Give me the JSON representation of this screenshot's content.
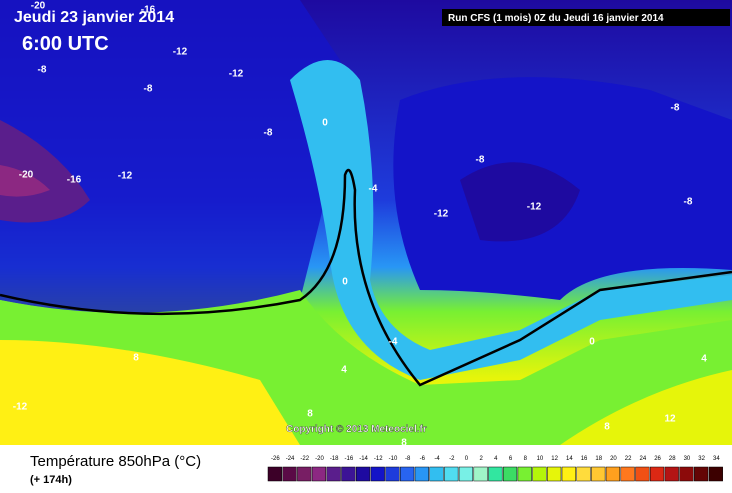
{
  "header": {
    "date": "Jeudi 23 janvier 2014",
    "time": "6:00 UTC",
    "run": "Run CFS (1 mois) 0Z du Jeudi 16 janvier 2014"
  },
  "copyright": "Copyright © 2013 Meteociel.fr",
  "legend": {
    "title": "Température 850hPa (°C)",
    "lead": "(+ 174h)",
    "ticks": [
      -26,
      -24,
      -22,
      -20,
      -18,
      -16,
      -14,
      -12,
      -10,
      -8,
      -6,
      -4,
      -2,
      0,
      2,
      4,
      6,
      8,
      10,
      12,
      14,
      16,
      18,
      20,
      22,
      24,
      26,
      28,
      30,
      32,
      34
    ],
    "colors": [
      "#3c0028",
      "#5a0a46",
      "#781e64",
      "#8c2882",
      "#5a1e8c",
      "#3c1496",
      "#1e0aa0",
      "#1414c8",
      "#1e3cdc",
      "#2864f0",
      "#2896f5",
      "#32bef0",
      "#50dcf0",
      "#78f0e6",
      "#a0f5c8",
      "#32e6a0",
      "#3cdc64",
      "#78f032",
      "#b4f50a",
      "#e6f50a",
      "#fff014",
      "#ffdc3c",
      "#ffc832",
      "#ffa01e",
      "#ff781e",
      "#f05014",
      "#dc2814",
      "#b41414",
      "#8c0a0a",
      "#640505",
      "#3c0000"
    ]
  },
  "contour_labels": [
    "-20",
    "-16",
    "-12",
    "-12",
    "-8",
    "-8",
    "-8",
    "0",
    "-20",
    "-16",
    "-12",
    "-4",
    "-8",
    "-8",
    "-12",
    "-12",
    "-8",
    "0",
    "-4",
    "4",
    "8",
    "-12",
    "8",
    "0",
    "4",
    "12",
    "8",
    "8"
  ]
}
